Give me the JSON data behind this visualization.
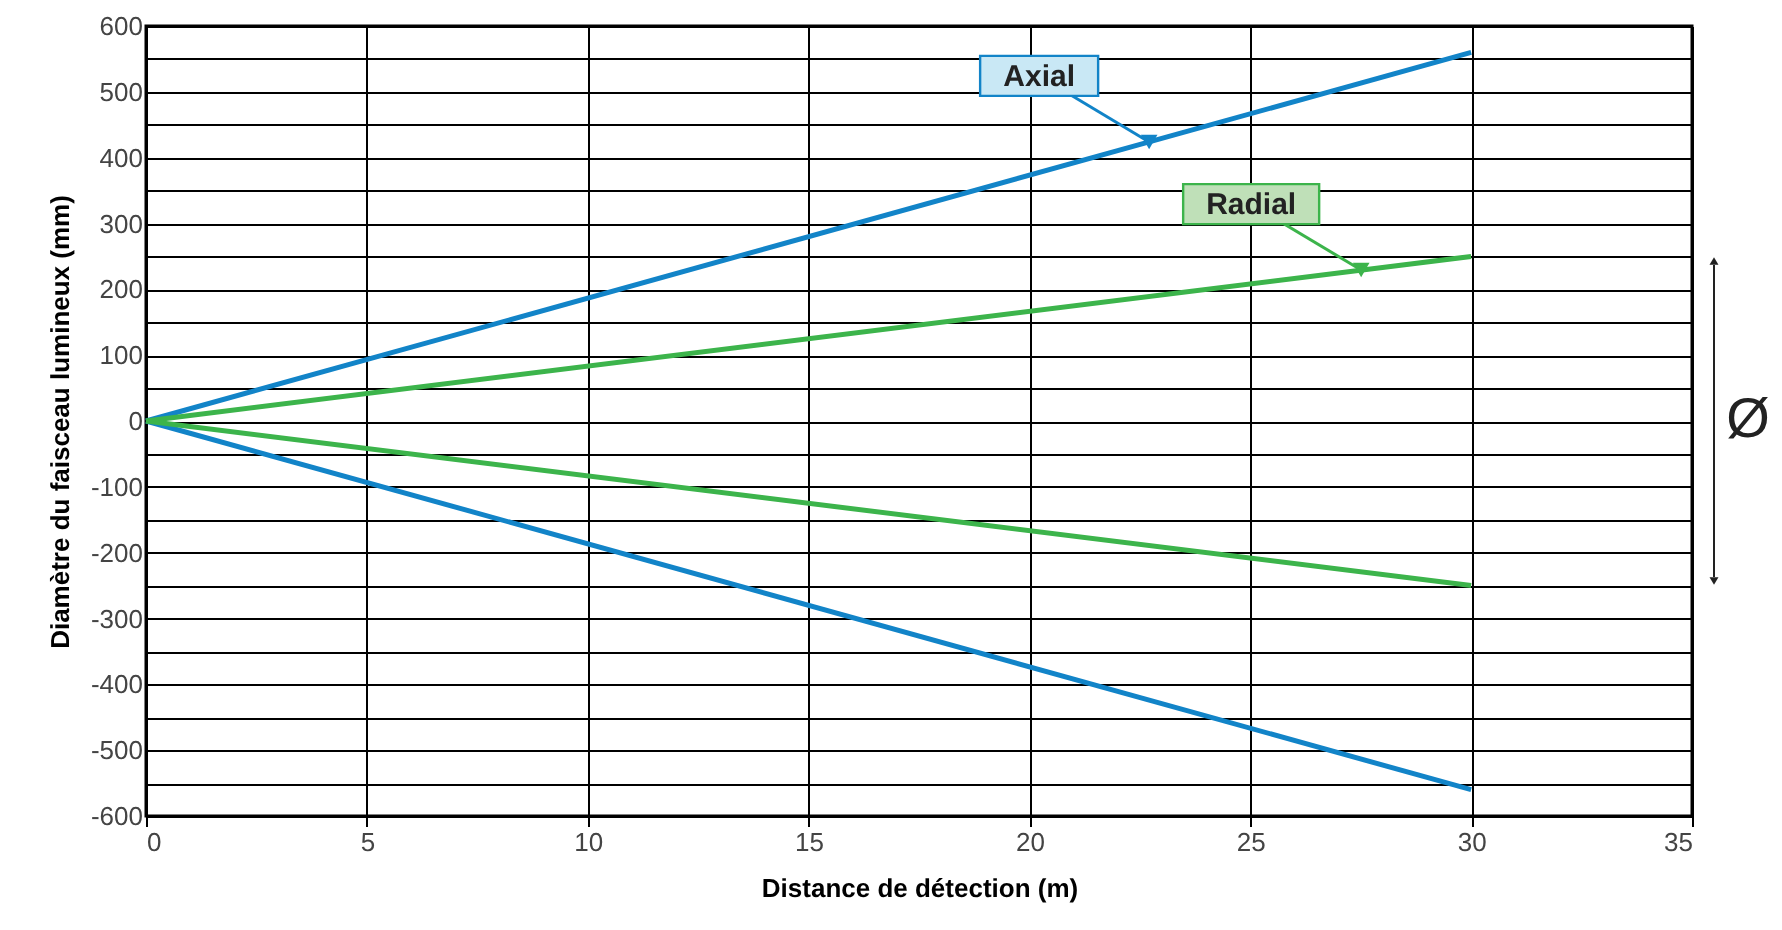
{
  "chart_data": {
    "type": "line",
    "xlabel": "Distance de détection (m)",
    "ylabel": "Diamètre du faisceau lumineux (mm)",
    "xlim": [
      0,
      35
    ],
    "xticks": [
      0,
      5,
      10,
      15,
      20,
      25,
      30,
      35
    ],
    "ylim": [
      -600,
      600
    ],
    "yticks": [
      -600,
      {
        "value": -550,
        "label": null
      },
      -500,
      {
        "value": -450,
        "label": null
      },
      -400,
      {
        "value": -350,
        "label": null
      },
      -300,
      {
        "value": -250,
        "label": null
      },
      -200,
      {
        "value": -150,
        "label": null
      },
      -100,
      {
        "value": -50,
        "label": null
      },
      0,
      {
        "value": 50,
        "label": null
      },
      100,
      {
        "value": 150,
        "label": null
      },
      200,
      {
        "value": 250,
        "label": null
      },
      300,
      {
        "value": 350,
        "label": null
      },
      400,
      {
        "value": 450,
        "label": null
      },
      500,
      {
        "value": 550,
        "label": null
      },
      600
    ],
    "grid": true,
    "line_style": "solid",
    "x": [
      0,
      30
    ],
    "series": [
      {
        "name": "Axial",
        "color": "#1284c8",
        "values": [
          0,
          560
        ]
      },
      {
        "color": "#1284c8",
        "values": [
          0,
          -560
        ]
      },
      {
        "name": "Radial",
        "color": "#3cb44b",
        "values": [
          0,
          250
        ]
      },
      {
        "color": "#3cb44b",
        "values": [
          0,
          -250
        ]
      }
    ],
    "annotations": [
      "Ø"
    ]
  }
}
